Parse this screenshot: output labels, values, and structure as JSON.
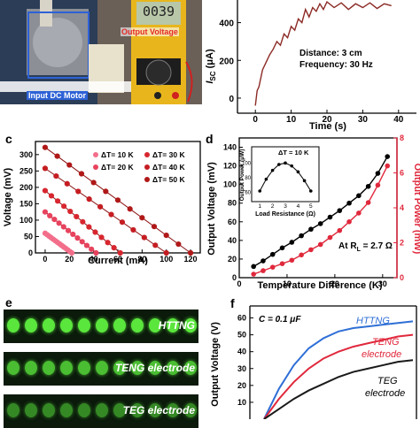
{
  "panel_a": {
    "label_output_voltage": "Output Voltage",
    "label_input_motor": "Input DC Motor",
    "meter_display": "0039"
  },
  "panel_b": {
    "ylabel": "I",
    "ylabel_sub": "SC",
    "ylabel_unit": " (μA)",
    "xlabel": "Time (s)",
    "annotation_line1": "Distance: 3 cm",
    "annotation_line2": "Frequency: 30 Hz",
    "yticks": [
      "0",
      "200",
      "400"
    ],
    "xticks": [
      "0",
      "10",
      "20",
      "30",
      "40"
    ]
  },
  "panel_c": {
    "letter": "c",
    "ylabel": "Voltage (mV)",
    "xlabel": "Current (mA)",
    "yticks": [
      "0",
      "50",
      "100",
      "150",
      "200",
      "250",
      "300"
    ],
    "xticks": [
      "0",
      "20",
      "40",
      "60",
      "80",
      "100",
      "120"
    ],
    "legend": [
      "ΔT= 10 K",
      "ΔT= 20 K",
      "ΔT= 30 K",
      "ΔT= 40 K",
      "ΔT= 50 K"
    ]
  },
  "panel_d": {
    "letter": "d",
    "ylabel_left": "Output Voltage (mV)",
    "ylabel_right": "Output Power (mW)",
    "xlabel": "Temperature Difference (K)",
    "yticks_left": [
      "0",
      "20",
      "40",
      "60",
      "80",
      "100",
      "120",
      "140"
    ],
    "yticks_right": [
      "0",
      "2",
      "4",
      "6",
      "8"
    ],
    "xticks": [
      "0",
      "10",
      "20",
      "30"
    ],
    "annotation_rl": "At R",
    "annotation_rl_sub": "L",
    "annotation_rl_value": " = 2.7 Ω",
    "inset_title": "ΔT = 10 K",
    "inset_ylabel": "Output Power (μW)",
    "inset_xlabel": "Load Resistance (Ω)",
    "inset_xticks": [
      "1",
      "2",
      "3",
      "4",
      "5"
    ],
    "inset_yticks": [
      "60",
      "80",
      "100"
    ]
  },
  "panel_e": {
    "letter": "e",
    "rows": [
      "HTTNG",
      "TENG electrode",
      "TEG electrode"
    ]
  },
  "panel_f": {
    "letter": "f",
    "ylabel": "Output Voltage (V)",
    "annotation": "C = 0.1 μF",
    "yticks": [
      "0",
      "10",
      "20",
      "30",
      "40",
      "50",
      "60"
    ],
    "series_labels": [
      "HTTNG",
      "TENG electrode",
      "TEG electrode"
    ],
    "label_teng_line1": "TENG",
    "label_teng_line2": "electrode",
    "label_teg_line1": "TEG",
    "label_teg_line2": "electrode",
    "colors": {
      "httng": "#2f6fd6",
      "teng": "#e0283c",
      "teg": "#1a1a1a"
    }
  },
  "chart_data": [
    {
      "type": "line",
      "panel": "b",
      "ylabel": "ISC (μA)",
      "xlabel": "Time (s)",
      "xlim": [
        -5,
        45
      ],
      "ylim": [
        -80,
        520
      ],
      "series": [
        {
          "x": [
            0,
            0.5,
            1,
            2,
            3,
            4,
            5,
            6,
            7,
            8,
            9,
            10,
            11,
            12,
            13,
            14,
            15,
            16,
            17,
            18,
            19,
            20,
            22,
            24,
            26,
            28,
            30,
            32,
            34,
            36,
            38
          ],
          "values": [
            -40,
            40,
            60,
            150,
            190,
            230,
            260,
            300,
            280,
            340,
            320,
            380,
            360,
            420,
            400,
            470,
            430,
            480,
            460,
            500,
            470,
            510,
            480,
            505,
            470,
            500,
            480,
            505,
            475,
            500,
            490
          ]
        }
      ]
    },
    {
      "type": "scatter",
      "panel": "c",
      "xlabel": "Current (mA)",
      "ylabel": "Voltage (mV)",
      "xlim": [
        -8,
        128
      ],
      "ylim": [
        0,
        340
      ],
      "categories": [
        "ΔT= 10 K",
        "ΔT= 20 K",
        "ΔT= 30 K",
        "ΔT= 40 K",
        "ΔT= 50 K"
      ],
      "series": [
        {
          "name": "ΔT= 10 K",
          "v0": 60,
          "i_max": 22,
          "points": 14,
          "color": "#f26e8a"
        },
        {
          "name": "ΔT= 20 K",
          "v0": 125,
          "i_max": 42,
          "points": 12,
          "color": "#e8435e"
        },
        {
          "name": "ΔT= 30 K",
          "v0": 190,
          "i_max": 62,
          "points": 13,
          "color": "#d8262f"
        },
        {
          "name": "ΔT= 40 K",
          "v0": 258,
          "i_max": 100,
          "points": 12,
          "color": "#c51d22"
        },
        {
          "name": "ΔT= 50 K",
          "v0": 322,
          "i_max": 120,
          "points": 13,
          "color": "#b01818"
        }
      ]
    },
    {
      "type": "line",
      "panel": "d",
      "xlabel": "Temperature Difference (K)",
      "xlim": [
        0,
        33
      ],
      "series": [
        {
          "name": "Output Voltage (mV)",
          "axis": "left",
          "ylim": [
            0,
            150
          ],
          "x": [
            3,
            5,
            7,
            9,
            11,
            13,
            15,
            17,
            19,
            21,
            23,
            25,
            27,
            29,
            31
          ],
          "values": [
            12,
            18,
            25,
            32,
            38,
            45,
            52,
            58,
            65,
            72,
            80,
            88,
            98,
            112,
            130
          ]
        },
        {
          "name": "Output Power (mW)",
          "axis": "right",
          "ylim": [
            0,
            8
          ],
          "x": [
            3,
            5,
            7,
            9,
            11,
            13,
            15,
            17,
            19,
            21,
            23,
            25,
            27,
            29,
            31
          ],
          "values": [
            0.2,
            0.4,
            0.6,
            0.8,
            1.0,
            1.3,
            1.6,
            1.9,
            2.3,
            2.7,
            3.2,
            3.7,
            4.3,
            5.3,
            6.4
          ]
        }
      ]
    },
    {
      "type": "line",
      "panel": "d-inset",
      "xlabel": "Load Resistance (Ω)",
      "ylabel": "Output Power (μW)",
      "xlim": [
        0.5,
        5.5
      ],
      "ylim": [
        50,
        110
      ],
      "series": [
        {
          "x": [
            1,
            1.5,
            2,
            2.5,
            3,
            3.5,
            4,
            4.5,
            5
          ],
          "values": [
            62,
            78,
            90,
            98,
            100,
            96,
            88,
            76,
            62
          ]
        }
      ]
    },
    {
      "type": "line",
      "panel": "f",
      "ylabel": "Output Voltage (V)",
      "ylim": [
        0,
        65
      ],
      "xlim": [
        0,
        100
      ],
      "series": [
        {
          "name": "HTTNG",
          "x": [
            0,
            10,
            20,
            30,
            40,
            50,
            60,
            70,
            80,
            90,
            100
          ],
          "values": [
            0,
            18,
            32,
            42,
            48,
            52,
            54,
            55,
            56,
            57,
            58
          ]
        },
        {
          "name": "TENG electrode",
          "x": [
            0,
            10,
            20,
            30,
            40,
            50,
            60,
            70,
            80,
            90,
            100
          ],
          "values": [
            0,
            12,
            22,
            30,
            36,
            40,
            43,
            45,
            47,
            49,
            50
          ]
        },
        {
          "name": "TEG electrode",
          "x": [
            0,
            10,
            20,
            30,
            40,
            50,
            60,
            70,
            80,
            90,
            100
          ],
          "values": [
            0,
            6,
            12,
            17,
            21,
            25,
            28,
            30,
            32,
            34,
            35
          ]
        }
      ]
    }
  ]
}
